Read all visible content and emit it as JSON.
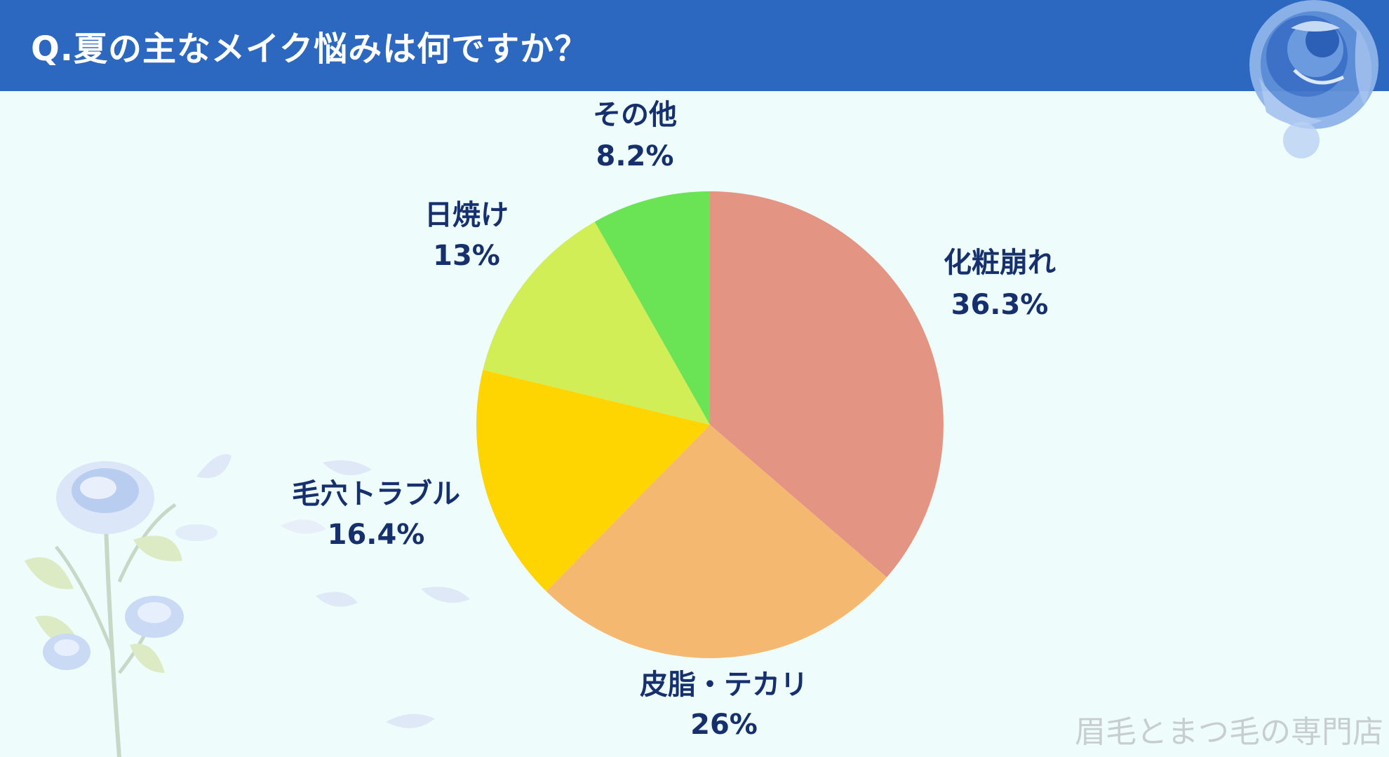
{
  "header": {
    "question": "Q.夏の主なメイク悩みは何ですか？"
  },
  "footer": {
    "credit": "眉毛とまつ毛の専門店"
  },
  "colors": {
    "banner": "#2c68c0",
    "background": "#effcfc",
    "label_text": "#16306e"
  },
  "icons": {
    "top_right": "blue-rose-icon",
    "bottom_left": "blue-rose-branch-icon"
  },
  "chart_data": {
    "type": "pie",
    "title": "Q.夏の主なメイク悩みは何ですか？",
    "start": "top, clockwise",
    "slices": [
      {
        "label": "化粧崩れ",
        "value": 36.3,
        "value_label": "36.3%",
        "color": "#e49483"
      },
      {
        "label": "皮脂・テカリ",
        "value": 26,
        "value_label": "26%",
        "color": "#f5b871"
      },
      {
        "label": "毛穴トラブル",
        "value": 16.4,
        "value_label": "16.4%",
        "color": "#fed401"
      },
      {
        "label": "日焼け",
        "value": 13,
        "value_label": "13%",
        "color": "#d2ee56"
      },
      {
        "label": "その他",
        "value": 8.2,
        "value_label": "8.2%",
        "color": "#6ae355"
      }
    ]
  }
}
